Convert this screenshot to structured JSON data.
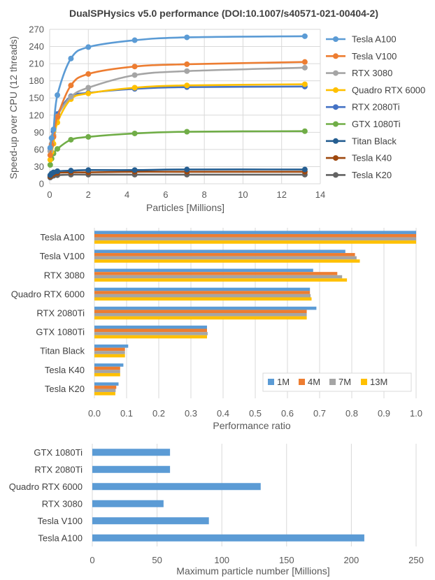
{
  "chart_data": [
    {
      "type": "line",
      "title": "DualSPHysics v5.0 performance (DOI:10.1007/s40571-021-00404-2)",
      "xlabel": "Particles [Millions]",
      "ylabel": "Speed-up over CPU (12 threads)",
      "xlim": [
        0,
        14
      ],
      "ylim": [
        0,
        270
      ],
      "xticks": [
        "0",
        "2",
        "4",
        "6",
        "8",
        "10",
        "12",
        "14"
      ],
      "yticks": [
        "0",
        "30",
        "60",
        "90",
        "120",
        "150",
        "180",
        "210",
        "240",
        "270"
      ],
      "grid": true,
      "legend": "right",
      "x": [
        0.03,
        0.1,
        0.2,
        0.4,
        1.1,
        2.0,
        4.4,
        7.1,
        13.2
      ],
      "series": [
        {
          "name": "Tesla A100",
          "color": "#5B9BD5",
          "values": [
            63,
            80,
            95,
            155,
            219,
            239,
            251,
            256,
            258
          ]
        },
        {
          "name": "Tesla V100",
          "color": "#ED7D31",
          "values": [
            50,
            68,
            82,
            117,
            172,
            192,
            205,
            209,
            213
          ]
        },
        {
          "name": "RTX 3080",
          "color": "#A5A5A5",
          "values": [
            57,
            70,
            85,
            118,
            152,
            168,
            190,
            197,
            203
          ]
        },
        {
          "name": "Quadro RTX 6000",
          "color": "#FFC000",
          "values": [
            42,
            55,
            70,
            107,
            148,
            158,
            168,
            172,
            174
          ]
        },
        {
          "name": "RTX 2080Ti",
          "color": "#4472C4",
          "values": [
            62,
            80,
            92,
            122,
            153,
            159,
            166,
            169,
            170
          ]
        },
        {
          "name": "GTX 1080Ti",
          "color": "#70AD47",
          "values": [
            33,
            44,
            53,
            61,
            77,
            82,
            88,
            91,
            92
          ]
        },
        {
          "name": "Titan Black",
          "color": "#255E91",
          "values": [
            15,
            18,
            20,
            22,
            23,
            24,
            24,
            25,
            25
          ]
        },
        {
          "name": "Tesla K40",
          "color": "#9E480E",
          "values": [
            13,
            15,
            17,
            19,
            20,
            20,
            21,
            21,
            21
          ]
        },
        {
          "name": "Tesla K20",
          "color": "#636363",
          "values": [
            11,
            13,
            14,
            15,
            16,
            16,
            16,
            16,
            16
          ]
        }
      ]
    },
    {
      "type": "bar",
      "orientation": "horizontal",
      "categories": [
        "Tesla A100",
        "Tesla V100",
        "RTX 3080",
        "Quadro RTX 6000",
        "RTX 2080Ti",
        "GTX 1080Ti",
        "Titan Black",
        "Tesla K40",
        "Tesla K20"
      ],
      "xlabel": "Performance ratio",
      "xlim": [
        0,
        1
      ],
      "xticks": [
        "0.0",
        "0.1",
        "0.2",
        "0.3",
        "0.4",
        "0.5",
        "0.6",
        "0.7",
        "0.8",
        "0.9",
        "1.0"
      ],
      "grid": true,
      "legend": "bottom-right",
      "series": [
        {
          "name": "1M",
          "color": "#5B9BD5",
          "values": [
            1.0,
            0.78,
            0.68,
            0.67,
            0.69,
            0.35,
            0.105,
            0.09,
            0.075
          ]
        },
        {
          "name": "4M",
          "color": "#ED7D31",
          "values": [
            1.0,
            0.81,
            0.755,
            0.67,
            0.66,
            0.35,
            0.095,
            0.08,
            0.068
          ]
        },
        {
          "name": "7M",
          "color": "#A5A5A5",
          "values": [
            1.0,
            0.815,
            0.77,
            0.672,
            0.66,
            0.352,
            0.095,
            0.08,
            0.066
          ]
        },
        {
          "name": "13M",
          "color": "#FFC000",
          "values": [
            1.0,
            0.825,
            0.785,
            0.675,
            0.66,
            0.35,
            0.095,
            0.08,
            0.065
          ]
        }
      ]
    },
    {
      "type": "bar",
      "orientation": "horizontal",
      "categories": [
        "GTX 1080Ti",
        "RTX 2080Ti",
        "Quadro RTX 6000",
        "RTX 3080",
        "Tesla V100",
        "Tesla A100"
      ],
      "xlabel": "Maximum particle number [Millions]",
      "xlim": [
        0,
        250
      ],
      "xticks": [
        "0",
        "50",
        "100",
        "150",
        "200",
        "250"
      ],
      "grid": true,
      "color": "#5B9BD5",
      "values": [
        60,
        60,
        130,
        55,
        90,
        210
      ]
    }
  ]
}
